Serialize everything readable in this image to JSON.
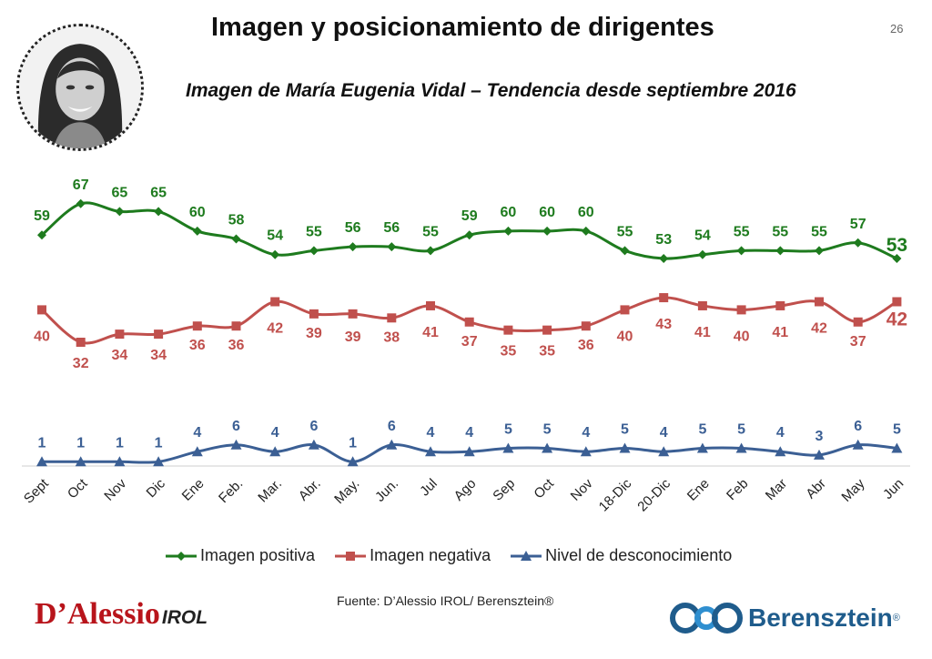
{
  "header": {
    "title": "Imagen y posicionamiento de dirigentes",
    "page_number": "26",
    "subtitle": "Imagen de María Eugenia Vidal – Tendencia desde septiembre 2016"
  },
  "footer": {
    "source": "Fuente: D’Alessio IROL/ Berensztein®",
    "logo_left_main": "D’Alessio",
    "logo_left_suffix": "IROL",
    "logo_right_word": "Berensztein",
    "logo_right_mark": "®"
  },
  "colors": {
    "positiva": "#1e7b1e",
    "negativa": "#c0504d",
    "desconocimiento": "#3b5f94"
  },
  "chart_data": {
    "type": "line",
    "categories": [
      "Sept",
      "Oct",
      "Nov",
      "Dic",
      "Ene",
      "Feb.",
      "Mar.",
      "Abr.",
      "May.",
      "Jun.",
      "Jul",
      "Ago",
      "Sep",
      "Oct",
      "Nov",
      "18-Dic",
      "20-Dic",
      "Ene",
      "Feb",
      "Mar",
      "Abr",
      "May",
      "Jun"
    ],
    "series": [
      {
        "name": "Imagen positiva",
        "color": "#1e7b1e",
        "marker": "diamond",
        "values": [
          59,
          67,
          65,
          65,
          60,
          58,
          54,
          55,
          56,
          56,
          55,
          59,
          60,
          60,
          60,
          55,
          53,
          54,
          55,
          55,
          55,
          57,
          53
        ]
      },
      {
        "name": "Imagen negativa",
        "color": "#c0504d",
        "marker": "square",
        "values": [
          40,
          32,
          34,
          34,
          36,
          36,
          42,
          39,
          39,
          38,
          41,
          37,
          35,
          35,
          36,
          40,
          43,
          41,
          40,
          41,
          42,
          37,
          42
        ]
      },
      {
        "name": "Nivel de desconocimiento",
        "color": "#3b5f94",
        "marker": "triangle",
        "values": [
          1,
          1,
          1,
          1,
          4,
          6,
          4,
          6,
          1,
          6,
          4,
          4,
          5,
          5,
          4,
          5,
          4,
          5,
          5,
          4,
          3,
          6,
          5
        ]
      }
    ],
    "legend_position": "bottom",
    "grid": false
  }
}
